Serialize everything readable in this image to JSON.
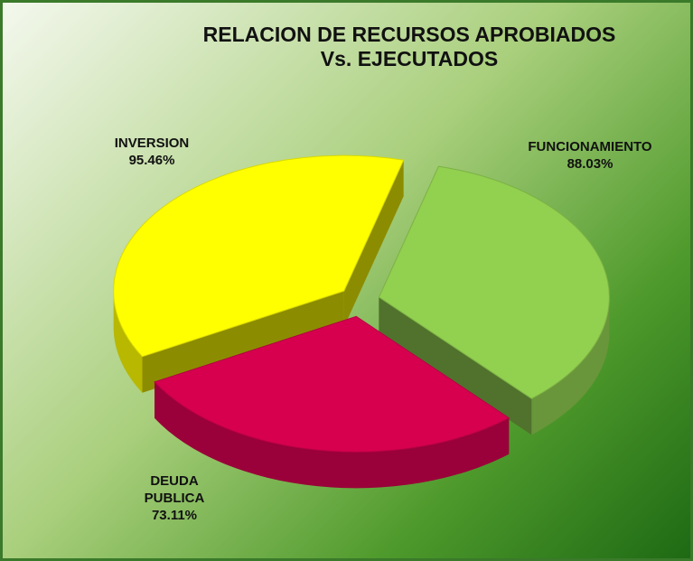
{
  "chart_data": {
    "type": "pie",
    "title": "RELACION DE RECURSOS APROBIADOS\nVs. EJECUTADOS",
    "categories": [
      "FUNCIONAMIENTO",
      "DEUDA PUBLICA",
      "INVERSION"
    ],
    "values": [
      88.03,
      73.11,
      95.46
    ],
    "value_labels": [
      "88.03%",
      "73.11%",
      "95.46%"
    ],
    "colors": [
      "#92d050",
      "#d6004f",
      "#ffff00"
    ]
  }
}
